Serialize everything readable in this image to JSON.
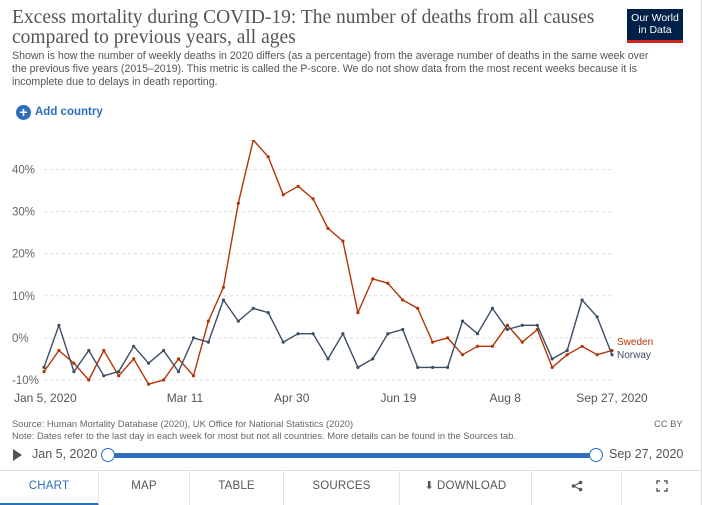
{
  "title": "Excess mortality during COVID-19: The number of deaths from all causes compared to previous years, all ages",
  "logo": {
    "line1": "Our World",
    "line2": "in Data"
  },
  "subtitle": "Shown is how the number of weekly deaths in 2020 differs (as a percentage) from the average number of deaths in the same week over the previous five years (2015–2019). This metric is called the P-score. We do not show data from the most recent weeks because it is incomplete due to delays in death reporting.",
  "add_country_label": "Add country",
  "source": "Source: Human Mortality Database (2020), UK Office for National Statistics (2020)",
  "note": "Note: Dates refer to the last day in each week for most but not all countries. More details can be found in the Sources tab.",
  "license": "CC BY",
  "timeline": {
    "start": "Jan 5, 2020",
    "end": "Sep 27, 2020"
  },
  "tabs": [
    {
      "label": "CHART",
      "active": true
    },
    {
      "label": "MAP",
      "active": false
    },
    {
      "label": "TABLE",
      "active": false
    },
    {
      "label": "SOURCES",
      "active": false
    },
    {
      "label": "DOWNLOAD",
      "active": false,
      "icon": "download-icon"
    },
    {
      "label": "",
      "active": false,
      "icon": "share-icon"
    },
    {
      "label": "",
      "active": false,
      "icon": "fullscreen-icon"
    }
  ],
  "chart_data": {
    "type": "line",
    "x": [
      "Jan 5, 2020",
      "Jan 12, 2020",
      "Jan 19, 2020",
      "Jan 26, 2020",
      "Feb 2, 2020",
      "Feb 9, 2020",
      "Feb 16, 2020",
      "Feb 23, 2020",
      "Mar 1, 2020",
      "Mar 8, 2020",
      "Mar 15, 2020",
      "Mar 22, 2020",
      "Mar 29, 2020",
      "Apr 5, 2020",
      "Apr 12, 2020",
      "Apr 19, 2020",
      "Apr 26, 2020",
      "May 3, 2020",
      "May 10, 2020",
      "May 17, 2020",
      "May 24, 2020",
      "May 31, 2020",
      "Jun 7, 2020",
      "Jun 14, 2020",
      "Jun 21, 2020",
      "Jun 28, 2020",
      "Jul 5, 2020",
      "Jul 12, 2020",
      "Jul 19, 2020",
      "Jul 26, 2020",
      "Aug 2, 2020",
      "Aug 9, 2020",
      "Aug 16, 2020",
      "Aug 23, 2020",
      "Aug 30, 2020",
      "Sep 6, 2020",
      "Sep 13, 2020",
      "Sep 20, 2020",
      "Sep 27, 2020"
    ],
    "x_ticks": [
      "Jan 5, 2020",
      "Mar 11",
      "Apr 30",
      "Jun 19",
      "Aug 8",
      "Sep 27, 2020"
    ],
    "x_tick_dates": [
      "2020-01-05",
      "2020-03-11",
      "2020-04-30",
      "2020-06-19",
      "2020-08-08",
      "2020-09-27"
    ],
    "y_ticks": [
      "-10%",
      "0%",
      "10%",
      "20%",
      "30%",
      "40%"
    ],
    "y_tick_values": [
      -10,
      0,
      10,
      20,
      30,
      40
    ],
    "ylim": [
      -10,
      47
    ],
    "grid": "horizontal dashed",
    "legend": "labels at line ends, right",
    "series": [
      {
        "name": "Sweden",
        "color": "#b13507",
        "values": [
          -8,
          -3,
          -6,
          -10,
          -3,
          -9,
          -5,
          -11,
          -10,
          -5,
          -9,
          4,
          12,
          32,
          47,
          43,
          34,
          36,
          33,
          26,
          23,
          6,
          14,
          13,
          9,
          7,
          -1,
          0,
          -4,
          -2,
          -2,
          3,
          -1,
          2,
          -7,
          -4,
          -2,
          -4,
          -3
        ]
      },
      {
        "name": "Norway",
        "color": "#3c4e66",
        "values": [
          -7,
          3,
          -8,
          -3,
          -9,
          -8,
          -2,
          -6,
          -3,
          -8,
          0,
          -1,
          9,
          4,
          7,
          6,
          -1,
          1,
          1,
          -5,
          1,
          -7,
          -5,
          1,
          2,
          -7,
          -7,
          -7,
          4,
          1,
          7,
          2,
          3,
          3,
          -5,
          -3,
          9,
          5,
          -4
        ]
      }
    ]
  }
}
